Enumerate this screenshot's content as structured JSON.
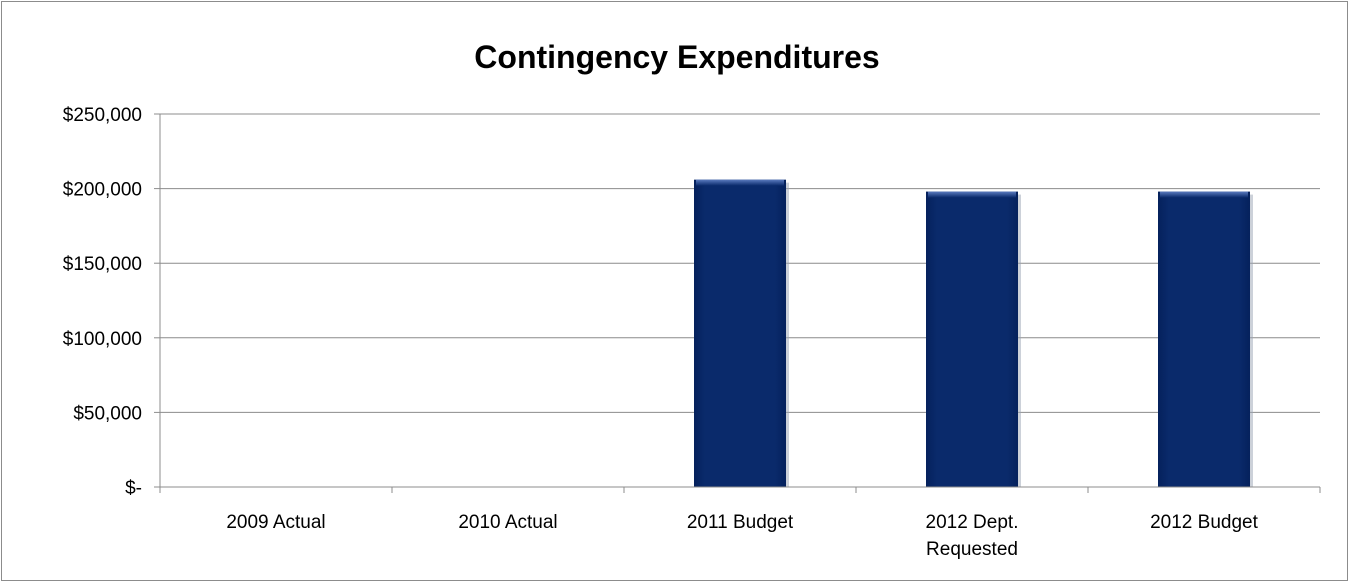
{
  "chart_data": {
    "type": "bar",
    "title": "Contingency Expenditures",
    "xlabel": "",
    "ylabel": "",
    "categories": [
      "2009 Actual",
      "2010 Actual",
      "2011 Budget",
      "2012 Dept. Requested",
      "2012 Budget"
    ],
    "category_lines": [
      [
        "2009 Actual"
      ],
      [
        "2010 Actual"
      ],
      [
        "2011 Budget"
      ],
      [
        "2012 Dept.",
        "Requested"
      ],
      [
        "2012 Budget"
      ]
    ],
    "values": [
      0,
      0,
      206000,
      198000,
      198000
    ],
    "ylim": [
      0,
      250000
    ],
    "y_ticks": [
      0,
      50000,
      100000,
      150000,
      200000,
      250000
    ],
    "y_tick_labels": [
      "$-",
      "$50,000",
      "$100,000",
      "$150,000",
      "$200,000",
      "$250,000"
    ],
    "grid": true,
    "legend": "none",
    "bar_color": "#0a2a6b",
    "bar_highlight": "#3d5fa3"
  }
}
